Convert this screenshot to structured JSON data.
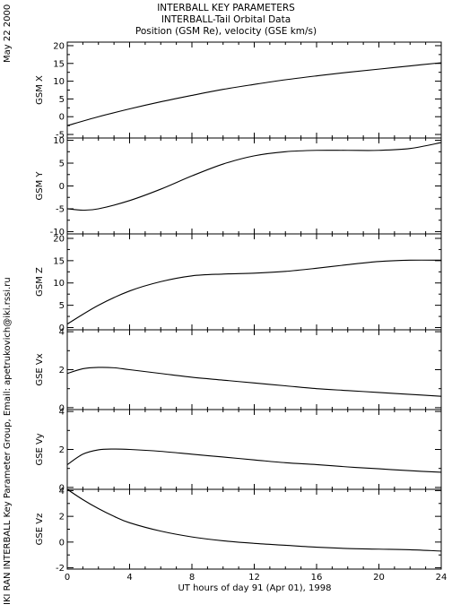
{
  "header": {
    "line1": "INTERBALL KEY PARAMETERS",
    "line2": "INTERBALL-Tail Orbital Data",
    "line3": "Position (GSM Re), velocity (GSE km/s)"
  },
  "side": {
    "date": "May 22 2000",
    "credit": "IKI RAN INTERBALL Key Parameter Group, Email: apetrukovich@iki.rssi.ru"
  },
  "chart_data": {
    "type": "line",
    "x_axis": {
      "label": "UT hours of day  91 (Apr 01), 1998",
      "range": [
        0,
        24
      ],
      "ticks": [
        0,
        4,
        8,
        12,
        16,
        20,
        24
      ]
    },
    "panels": [
      {
        "ylabel": "GSM X",
        "ylim": [
          -6,
          21
        ],
        "yticks": [
          -5,
          0,
          5,
          10,
          15,
          20
        ],
        "x": [
          0,
          2,
          4,
          6,
          8,
          10,
          12,
          14,
          16,
          18,
          20,
          22,
          24
        ],
        "y": [
          -2.5,
          0.0,
          2.2,
          4.2,
          6.0,
          7.7,
          9.1,
          10.4,
          11.5,
          12.5,
          13.4,
          14.3,
          15.2
        ]
      },
      {
        "ylabel": "GSM Y",
        "ylim": [
          -10.5,
          10.5
        ],
        "yticks": [
          -10,
          -5,
          0,
          5,
          10
        ],
        "x": [
          0,
          1,
          2,
          4,
          6,
          8,
          10,
          12,
          14,
          16,
          18,
          20,
          22,
          24
        ],
        "y": [
          -5.0,
          -5.3,
          -5.0,
          -3.2,
          -0.7,
          2.2,
          4.8,
          6.6,
          7.5,
          7.8,
          7.8,
          7.8,
          8.2,
          9.5
        ]
      },
      {
        "ylabel": "GSM Z",
        "ylim": [
          -0.5,
          21
        ],
        "yticks": [
          0,
          5,
          10,
          15,
          20
        ],
        "x": [
          0,
          2,
          4,
          6,
          8,
          10,
          12,
          14,
          16,
          18,
          20,
          22,
          24
        ],
        "y": [
          0.8,
          5.0,
          8.2,
          10.3,
          11.6,
          12.0,
          12.2,
          12.6,
          13.3,
          14.1,
          14.8,
          15.1,
          15.1
        ]
      },
      {
        "ylabel": "GSE Vx",
        "ylim": [
          -0.1,
          4.1
        ],
        "yticks": [
          0,
          2,
          4
        ],
        "x": [
          0,
          1,
          2,
          3,
          4,
          6,
          8,
          10,
          12,
          14,
          16,
          18,
          20,
          22,
          24
        ],
        "y": [
          1.8,
          2.05,
          2.12,
          2.1,
          2.0,
          1.8,
          1.6,
          1.45,
          1.3,
          1.15,
          1.0,
          0.9,
          0.8,
          0.7,
          0.6
        ]
      },
      {
        "ylabel": "GSE Vy",
        "ylim": [
          -0.1,
          4.1
        ],
        "yticks": [
          0,
          2,
          4
        ],
        "x": [
          0,
          1,
          2,
          3,
          4,
          6,
          8,
          10,
          12,
          14,
          16,
          18,
          20,
          22,
          24
        ],
        "y": [
          1.2,
          1.75,
          1.98,
          2.02,
          2.0,
          1.9,
          1.75,
          1.6,
          1.45,
          1.3,
          1.2,
          1.08,
          0.98,
          0.88,
          0.8
        ]
      },
      {
        "ylabel": "GSE Vz",
        "ylim": [
          -2.1,
          4.1
        ],
        "yticks": [
          -2,
          0,
          2,
          4
        ],
        "x": [
          0,
          1,
          2,
          3,
          4,
          6,
          8,
          10,
          12,
          14,
          16,
          18,
          20,
          22,
          24
        ],
        "y": [
          4.1,
          3.3,
          2.6,
          2.0,
          1.5,
          0.85,
          0.4,
          0.1,
          -0.1,
          -0.25,
          -0.4,
          -0.5,
          -0.55,
          -0.6,
          -0.7
        ]
      }
    ]
  }
}
